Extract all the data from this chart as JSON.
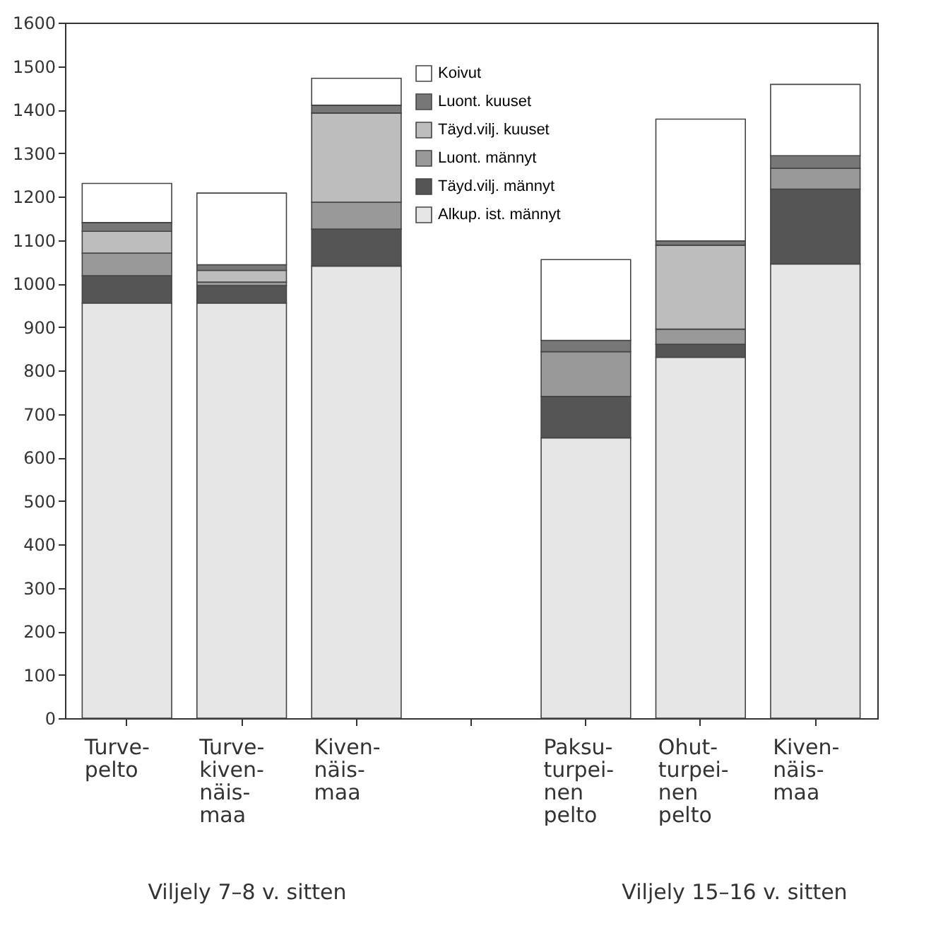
{
  "chart_data": {
    "type": "bar",
    "stacked": true,
    "categories": [
      "Turve-\npelto",
      "Turve-\nkiven-\nnäis-\nmaa",
      "Kiven-\nnäis-\nmaa",
      null,
      "Paksu-\nturpei-\nnen\npelto",
      "Ohut-\nturpei-\nnen\npelto",
      "Kiven-\nnäis-\nmaa"
    ],
    "series": [
      {
        "name": "Alkup. ist. männyt",
        "color": "#e6e6e6",
        "values": [
          955,
          955,
          1040,
          null,
          645,
          830,
          1045
        ]
      },
      {
        "name": "Täyd.vilj. männyt",
        "color": "#555555",
        "values": [
          63,
          40,
          85,
          null,
          95,
          30,
          172
        ]
      },
      {
        "name": "Luont. männyt",
        "color": "#999999",
        "values": [
          52,
          8,
          62,
          null,
          103,
          35,
          48
        ]
      },
      {
        "name": "Täyd.vilj. kuuset",
        "color": "#bdbdbd",
        "values": [
          50,
          27,
          205,
          null,
          0,
          193,
          0
        ]
      },
      {
        "name": "Luont. kuuset",
        "color": "#777777",
        "values": [
          20,
          13,
          18,
          null,
          26,
          10,
          29
        ]
      },
      {
        "name": "Koivut",
        "color": "#ffffff",
        "values": [
          90,
          165,
          62,
          null,
          186,
          280,
          164
        ]
      }
    ],
    "ylim": [
      0,
      1600
    ],
    "yticks": [
      0,
      100,
      200,
      300,
      400,
      500,
      600,
      700,
      800,
      900,
      1000,
      1100,
      1200,
      1300,
      1400,
      1500,
      1600
    ],
    "legend": "top",
    "annotations": [
      "Viljely 7–8 v. sitten",
      "Viljely 15–16 v. sitten"
    ]
  }
}
